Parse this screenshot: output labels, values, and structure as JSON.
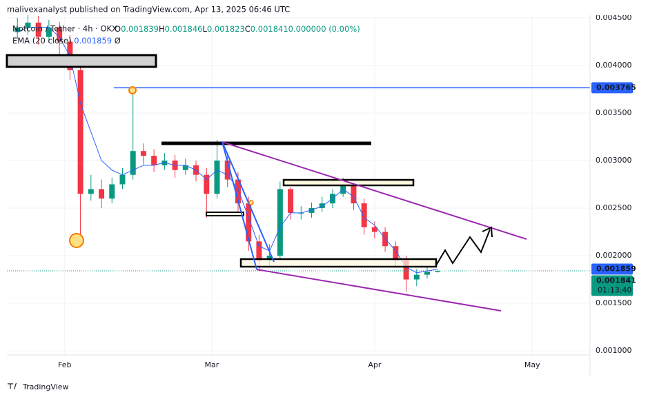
{
  "chart_data": {
    "type": "candlestick",
    "header": "malivexanalyst published on TradingView.com, Apr 13, 2025 06:46 UTC",
    "symbol": "Notcoin / Tether · 4h · OKX",
    "ohlc": [
      [
        "O",
        "0.001839"
      ],
      [
        "H",
        "0.001846"
      ],
      [
        "L",
        "0.001823"
      ],
      [
        "C",
        "0.001841"
      ],
      [
        "",
        "0.000000 (0.00%)"
      ]
    ],
    "ema_legend": [
      "EMA (20 close)",
      "0.001859",
      "Ø"
    ],
    "brand": "TradingView",
    "candles": {
      "x": [
        "2025-01-23",
        "2025-01-25",
        "2025-01-27",
        "2025-01-29",
        "2025-01-31",
        "2025-02-02",
        "2025-02-04",
        "2025-02-06",
        "2025-02-08",
        "2025-02-10",
        "2025-02-12",
        "2025-02-14",
        "2025-02-16",
        "2025-02-18",
        "2025-02-20",
        "2025-02-22",
        "2025-02-24",
        "2025-02-26",
        "2025-02-28",
        "2025-03-02",
        "2025-03-04",
        "2025-03-06",
        "2025-03-08",
        "2025-03-10",
        "2025-03-12",
        "2025-03-14",
        "2025-03-16",
        "2025-03-18",
        "2025-03-20",
        "2025-03-22",
        "2025-03-24",
        "2025-03-26",
        "2025-03-28",
        "2025-03-30",
        "2025-04-01",
        "2025-04-03",
        "2025-04-05",
        "2025-04-07",
        "2025-04-09",
        "2025-04-11",
        "2025-04-13"
      ],
      "open": [
        0.00435,
        0.0044,
        0.00445,
        0.0043,
        0.0044,
        0.00425,
        0.00395,
        0.00265,
        0.0027,
        0.0026,
        0.00275,
        0.00285,
        0.0031,
        0.00305,
        0.00295,
        0.003,
        0.0029,
        0.00295,
        0.00285,
        0.00265,
        0.003,
        0.0028,
        0.00255,
        0.00215,
        0.00195,
        0.002,
        0.0027,
        0.00245,
        0.00245,
        0.0025,
        0.00255,
        0.00265,
        0.00275,
        0.00255,
        0.0023,
        0.00225,
        0.0021,
        0.00195,
        0.00175,
        0.0018,
        0.00183
      ],
      "high": [
        0.0045,
        0.00455,
        0.00452,
        0.00448,
        0.00446,
        0.00432,
        0.004,
        0.00285,
        0.0028,
        0.00282,
        0.00292,
        0.003765,
        0.00318,
        0.00312,
        0.00308,
        0.00306,
        0.00302,
        0.003,
        0.00292,
        0.00322,
        0.00308,
        0.00288,
        0.00262,
        0.00222,
        0.00212,
        0.00278,
        0.00272,
        0.00252,
        0.00256,
        0.00262,
        0.0027,
        0.00282,
        0.0028,
        0.0026,
        0.00236,
        0.0023,
        0.00215,
        0.002,
        0.00186,
        0.00188,
        0.001846
      ],
      "low": [
        0.00428,
        0.00432,
        0.00422,
        0.00424,
        0.00405,
        0.00385,
        0.00216,
        0.00258,
        0.0025,
        0.00255,
        0.0027,
        0.0028,
        0.00296,
        0.00288,
        0.0029,
        0.00282,
        0.00285,
        0.00278,
        0.0024,
        0.0026,
        0.00272,
        0.00245,
        0.00205,
        0.00184,
        0.00188,
        0.00196,
        0.00238,
        0.00238,
        0.0024,
        0.00246,
        0.0025,
        0.00262,
        0.00248,
        0.00222,
        0.00218,
        0.00204,
        0.00188,
        0.00162,
        0.00168,
        0.00176,
        0.001823
      ],
      "close": [
        0.0044,
        0.00445,
        0.0043,
        0.0044,
        0.00425,
        0.00395,
        0.00265,
        0.0027,
        0.0026,
        0.00275,
        0.00285,
        0.0031,
        0.00305,
        0.00295,
        0.003,
        0.0029,
        0.00295,
        0.00285,
        0.00265,
        0.003,
        0.0028,
        0.00255,
        0.00215,
        0.00195,
        0.002,
        0.0027,
        0.00245,
        0.00245,
        0.0025,
        0.00255,
        0.00265,
        0.00275,
        0.00255,
        0.0023,
        0.00225,
        0.0021,
        0.00195,
        0.00175,
        0.0018,
        0.00183,
        0.001841
      ],
      "up_color": "#089981",
      "down_color": "#f23645"
    },
    "ema": {
      "color": "#2962ff",
      "values": [
        0.00435,
        0.0044,
        0.0044,
        0.0044,
        0.0043,
        0.0041,
        0.0036,
        0.0033,
        0.003,
        0.0029,
        0.00285,
        0.0029,
        0.00295,
        0.00295,
        0.00298,
        0.00295,
        0.00295,
        0.0029,
        0.0028,
        0.0029,
        0.00285,
        0.0027,
        0.0024,
        0.0021,
        0.00205,
        0.0023,
        0.00245,
        0.00245,
        0.00248,
        0.00252,
        0.0026,
        0.0027,
        0.00262,
        0.0024,
        0.00232,
        0.00218,
        0.00205,
        0.00188,
        0.00182,
        0.00184,
        0.001859
      ]
    },
    "price_line": {
      "value": 0.003765,
      "label": "0.003765",
      "color": "#2962ff"
    },
    "ema_label": {
      "value": 0.001859,
      "label": "0.001859",
      "color": "#2962ff"
    },
    "last_price": {
      "value": 0.001841,
      "label": "0.001841",
      "countdown": "01:13:40",
      "color": "#089981"
    },
    "xlim": [
      "2025-01-21",
      "2025-05-12"
    ],
    "xticks": [
      {
        "value": "2025-02-01",
        "label": "Feb"
      },
      {
        "value": "2025-03-01",
        "label": "Mar"
      },
      {
        "value": "2025-04-01",
        "label": "Apr"
      },
      {
        "value": "2025-05-01",
        "label": "May"
      }
    ],
    "ylim": [
      0.000957,
      0.004543
    ],
    "yticks": [
      {
        "value": 0.001,
        "label": "0.001000"
      },
      {
        "value": 0.0015,
        "label": "0.001500"
      },
      {
        "value": 0.002,
        "label": "0.002000"
      },
      {
        "value": 0.0025,
        "label": "0.002500"
      },
      {
        "value": 0.003,
        "label": "0.003000"
      },
      {
        "value": 0.0035,
        "label": "0.003500"
      },
      {
        "value": 0.004,
        "label": "0.004000"
      },
      {
        "value": 0.0045,
        "label": "0.004500"
      }
    ],
    "grid": true
  }
}
